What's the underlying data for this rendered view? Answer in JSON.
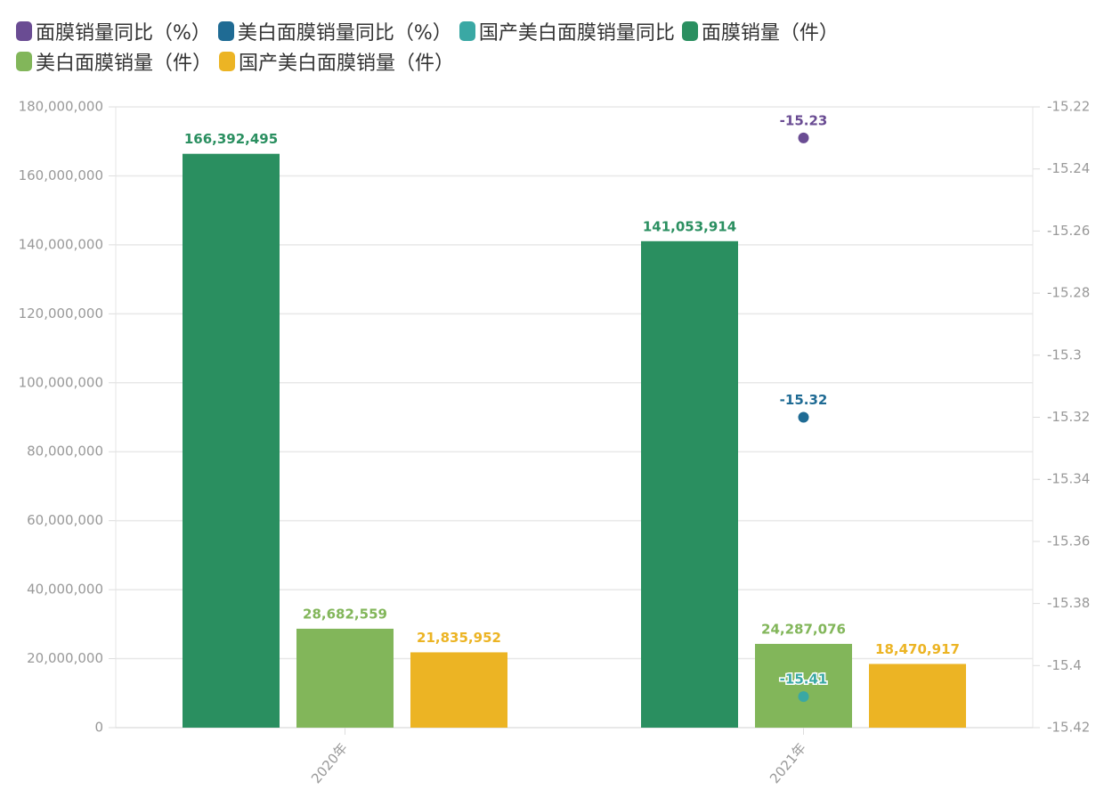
{
  "chart_data": {
    "type": "bar",
    "categories": [
      "2020年",
      "2021年"
    ],
    "series": [
      {
        "name": "面膜销量同比（%）",
        "color": "#6a4c93",
        "type": "scatter",
        "axis": "y2",
        "values": [
          null,
          -15.23
        ]
      },
      {
        "name": "美白面膜销量同比（%）",
        "color": "#1f6b94",
        "type": "scatter",
        "axis": "y2",
        "values": [
          null,
          -15.32
        ]
      },
      {
        "name": "国产美白面膜销量同比",
        "color": "#3aa8a4",
        "type": "scatter",
        "axis": "y2",
        "values": [
          null,
          -15.41
        ]
      },
      {
        "name": "面膜销量（件）",
        "color": "#2a8f60",
        "type": "bar",
        "values": [
          166392495,
          141053914
        ],
        "value_labels": [
          "166,392,495",
          "141,053,914"
        ]
      },
      {
        "name": "美白面膜销量（件）",
        "color": "#82b65a",
        "type": "bar",
        "values": [
          28682559,
          24287076
        ],
        "value_labels": [
          "28,682,559",
          "24,287,076"
        ]
      },
      {
        "name": "国产美白面膜销量（件）",
        "color": "#ecb424",
        "type": "bar",
        "values": [
          21835952,
          18470917
        ],
        "value_labels": [
          "21,835,952",
          "18,470,917"
        ]
      }
    ],
    "ylim": [
      0,
      180000000
    ],
    "yticks": [
      0,
      {
        "value": 20000000,
        "label": "20,000,000"
      },
      {
        "value": 40000000,
        "label": "40,000,000"
      },
      {
        "value": 60000000,
        "label": "60,000,000"
      },
      {
        "value": 80000000,
        "label": "80,000,000"
      },
      {
        "value": 100000000,
        "label": "100,000,000"
      },
      {
        "value": 120000000,
        "label": "120,000,000"
      },
      {
        "value": 140000000,
        "label": "140,000,000"
      },
      {
        "value": 160000000,
        "label": "160,000,000"
      },
      {
        "value": 180000000,
        "label": "180,000,000"
      }
    ],
    "y2lim": [
      -15.42,
      -15.22
    ],
    "y2ticks": [
      -15.42,
      -15.4,
      -15.38,
      -15.36,
      -15.34,
      -15.32,
      -15.3,
      -15.28,
      -15.26,
      -15.24,
      -15.22
    ],
    "grid": true
  }
}
